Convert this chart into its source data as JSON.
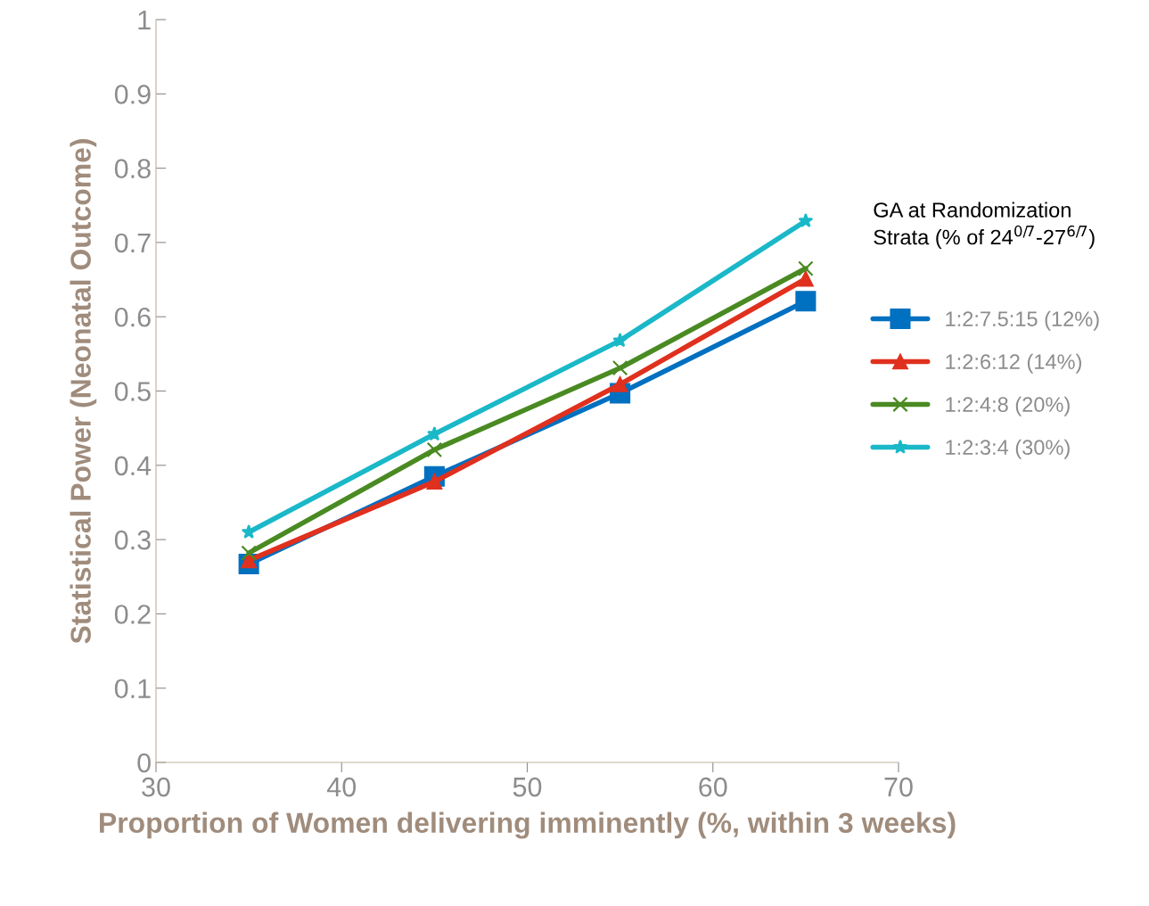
{
  "chart_data": {
    "type": "line",
    "xlabel": "Proportion of Women delivering imminently (%, within 3 weeks)",
    "ylabel": "Statistical Power (Neonatal Outcome)",
    "legend_title": "GA at Randomization\nStrata (% of 24$^{0/7}$-27$^{6/7}$)",
    "legend": "right",
    "grid": false,
    "line_style": "solid",
    "x": [
      35,
      45,
      55,
      65
    ],
    "xlim": [
      30,
      70
    ],
    "xticks": [
      30,
      40,
      50,
      60,
      70
    ],
    "ylim": [
      0,
      1
    ],
    "yticks": [
      0,
      0.1,
      0.2,
      0.3,
      0.4,
      0.5,
      0.6,
      0.7,
      0.8,
      0.9,
      1
    ],
    "series": [
      {
        "name": "1:2:7.5:15 (12%)",
        "color": "#0070c0",
        "marker": "square",
        "values": [
          0.267,
          0.385,
          0.497,
          0.621
        ]
      },
      {
        "name": "1:2:6:12 (14%)",
        "color": "#e0301e",
        "marker": "triangle",
        "values": [
          0.272,
          0.378,
          0.509,
          0.651
        ]
      },
      {
        "name": "1:2:4:8 (20%)",
        "color": "#4a8a22",
        "marker": "cross",
        "values": [
          0.282,
          0.421,
          0.531,
          0.665
        ]
      },
      {
        "name": "1:2:3:4 (30%)",
        "color": "#1ab8c8",
        "marker": "star",
        "values": [
          0.31,
          0.442,
          0.568,
          0.729
        ]
      }
    ]
  }
}
